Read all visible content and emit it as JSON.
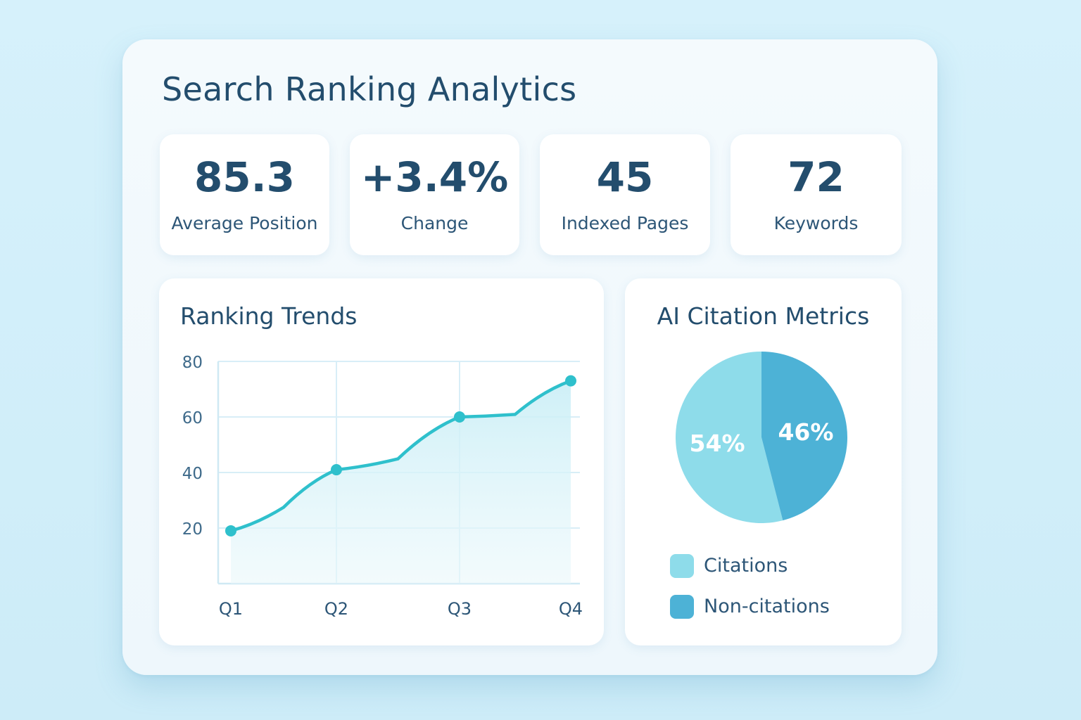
{
  "title": "Search Ranking Analytics",
  "stats": [
    {
      "value": "85.3",
      "label": "Average Position"
    },
    {
      "value": "+3.4%",
      "label": "Change"
    },
    {
      "value": "45",
      "label": "Indexed Pages"
    },
    {
      "value": "72",
      "label": "Keywords"
    }
  ],
  "trend_panel": {
    "title": "Ranking Trends"
  },
  "citation_panel": {
    "title": "AI Citation Metrics",
    "legend": [
      {
        "label": "Citations",
        "color": "#8edcea"
      },
      {
        "label": "Non-citations",
        "color": "#4db2d6"
      }
    ]
  },
  "colors": {
    "text": "#234d6d",
    "accent": "#2fc0cc",
    "citations": "#8edcea",
    "non_citations": "#4db2d6"
  },
  "chart_data": [
    {
      "type": "line",
      "title": "Ranking Trends",
      "categories": [
        "Q1",
        "Q2",
        "Q3",
        "Q4"
      ],
      "values": [
        19,
        41,
        60,
        73
      ],
      "y_ticks": [
        20,
        40,
        60,
        80
      ],
      "ylim": [
        0,
        80
      ],
      "grid": true,
      "fill": true
    },
    {
      "type": "pie",
      "title": "AI Citation Metrics",
      "slices": [
        {
          "label": "Citations",
          "value": 54,
          "display": "54%"
        },
        {
          "label": "Non-citations",
          "value": 46,
          "display": "46%"
        }
      ],
      "legend": "bottom"
    }
  ]
}
